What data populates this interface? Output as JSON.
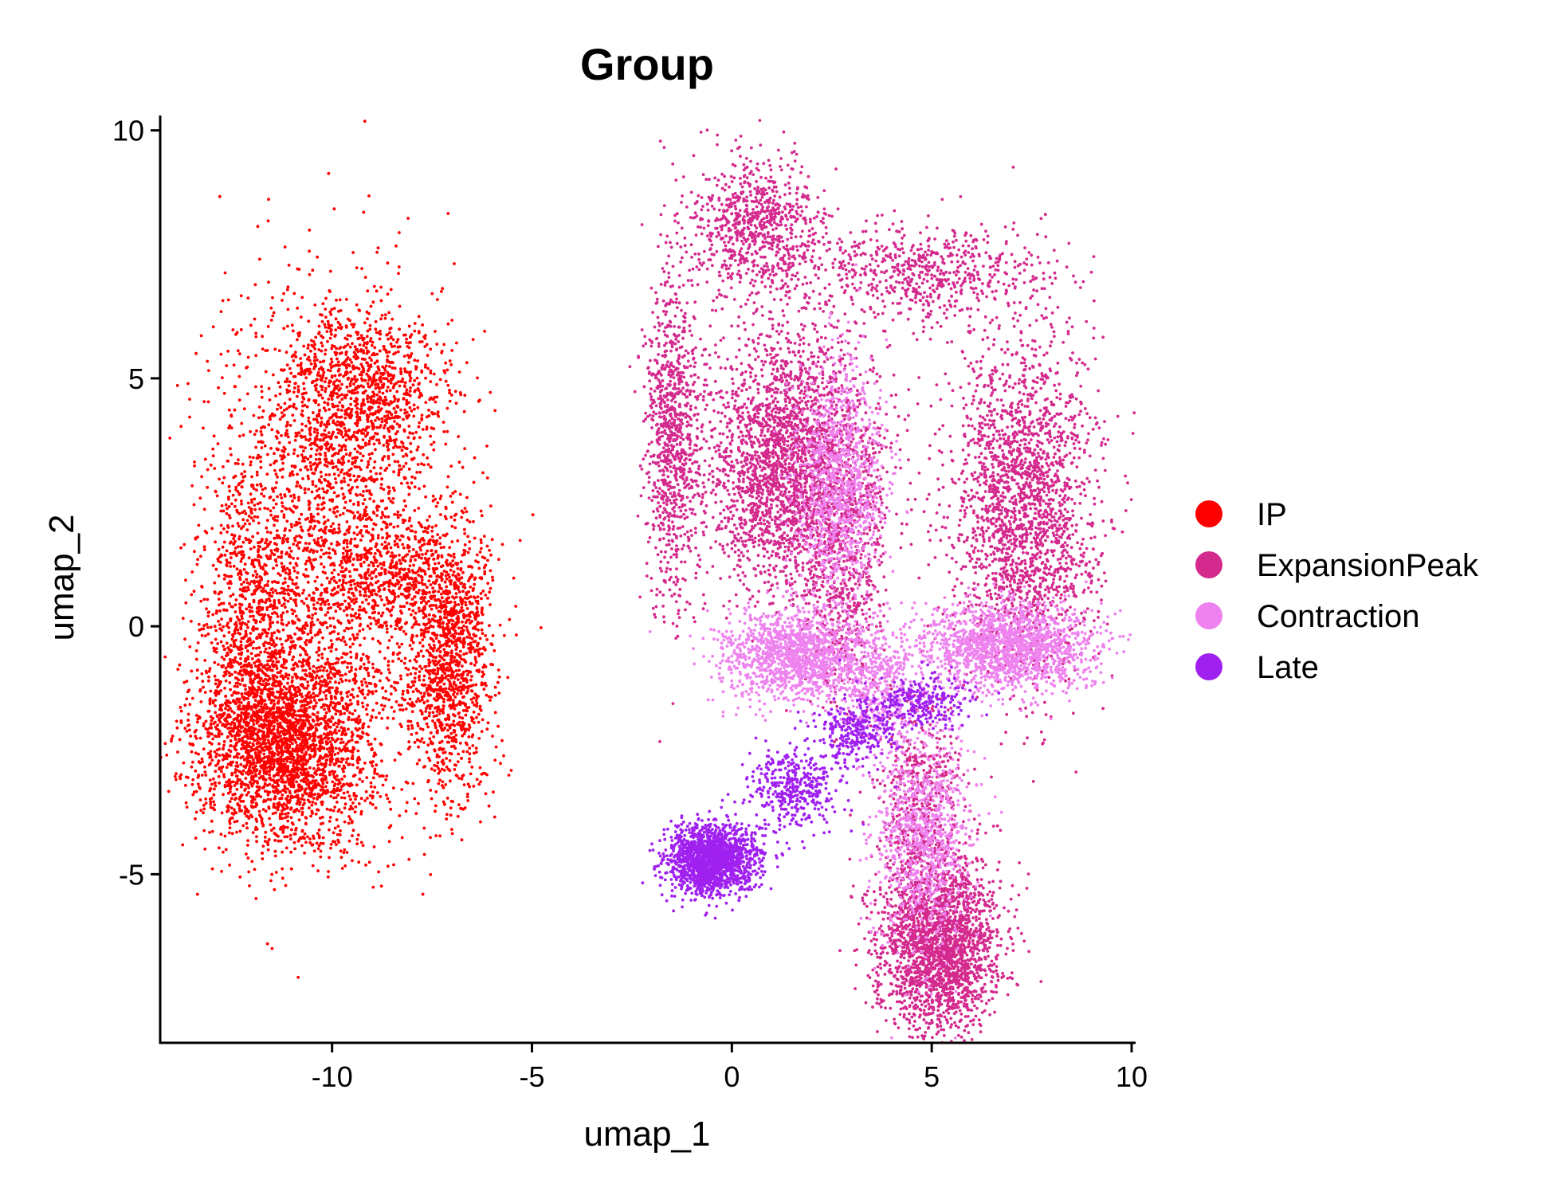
{
  "chart_data": {
    "type": "scatter",
    "title": "Group",
    "xlabel": "umap_1",
    "ylabel": "umap_2",
    "xlim": [
      -14.3,
      10.1
    ],
    "ylim": [
      -8.4,
      10.3
    ],
    "xticks": [
      -10,
      -5,
      0,
      5,
      10
    ],
    "yticks": [
      -5,
      0,
      5,
      10
    ],
    "xtick_labels": [
      "-10",
      "-5",
      "0",
      "5",
      "10"
    ],
    "ytick_labels": [
      "-5",
      "0",
      "5",
      "10"
    ],
    "grid": false,
    "legend_position": "right",
    "series": [
      {
        "name": "IP",
        "color": "#ff0000",
        "blobs": [
          {
            "cx": -11.2,
            "cy": -2.4,
            "sx": 1.1,
            "sy": 1.0,
            "n": 2600
          },
          {
            "cx": -10.3,
            "cy": 1.5,
            "sx": 1.4,
            "sy": 2.4,
            "n": 2000
          },
          {
            "cx": -9.3,
            "cy": 4.7,
            "sx": 1.1,
            "sy": 0.9,
            "n": 1100
          },
          {
            "cx": -7.1,
            "cy": -0.7,
            "sx": 0.55,
            "sy": 1.4,
            "n": 1300
          },
          {
            "cx": -8.5,
            "cy": 1.1,
            "sx": 0.9,
            "sy": 0.6,
            "n": 500
          },
          {
            "cx": -12.1,
            "cy": -0.2,
            "sx": 0.6,
            "sy": 1.6,
            "n": 700
          }
        ]
      },
      {
        "name": "ExpansionPeak",
        "color": "#d42a8e",
        "blobs": [
          {
            "cx": 1.5,
            "cy": 3.3,
            "sx": 1.1,
            "sy": 1.3,
            "n": 2800
          },
          {
            "cx": 7.3,
            "cy": 2.4,
            "sx": 0.9,
            "sy": 1.7,
            "n": 2200
          },
          {
            "cx": 5.2,
            "cy": -6.4,
            "sx": 0.75,
            "sy": 0.9,
            "n": 2400
          },
          {
            "cx": -1.5,
            "cy": 4.0,
            "sx": 0.35,
            "sy": 1.8,
            "n": 900
          },
          {
            "cx": 0.6,
            "cy": 8.1,
            "sx": 0.8,
            "sy": 0.7,
            "n": 800
          },
          {
            "cx": 4.6,
            "cy": 7.1,
            "sx": 1.7,
            "sy": 0.5,
            "n": 700
          },
          {
            "cx": 2.8,
            "cy": 1.0,
            "sx": 0.5,
            "sy": 1.3,
            "n": 500
          },
          {
            "cx": 4.7,
            "cy": -3.5,
            "sx": 0.5,
            "sy": 1.0,
            "n": 500
          }
        ]
      },
      {
        "name": "Contraction",
        "color": "#ee82ee",
        "blobs": [
          {
            "cx": 1.6,
            "cy": -0.6,
            "sx": 0.9,
            "sy": 0.45,
            "n": 1300
          },
          {
            "cx": 6.9,
            "cy": -0.4,
            "sx": 1.1,
            "sy": 0.45,
            "n": 1600
          },
          {
            "cx": 2.7,
            "cy": 2.8,
            "sx": 0.55,
            "sy": 1.2,
            "n": 1000
          },
          {
            "cx": 4.8,
            "cy": -4.2,
            "sx": 0.6,
            "sy": 1.1,
            "n": 900
          },
          {
            "cx": 3.6,
            "cy": -1.2,
            "sx": 0.5,
            "sy": 0.6,
            "n": 400
          }
        ]
      },
      {
        "name": "Late",
        "color": "#a020f0",
        "blobs": [
          {
            "cx": -0.5,
            "cy": -4.7,
            "sx": 0.55,
            "sy": 0.35,
            "n": 1700
          },
          {
            "cx": 1.6,
            "cy": -3.3,
            "sx": 0.55,
            "sy": 0.45,
            "n": 400
          },
          {
            "cx": 3.1,
            "cy": -2.1,
            "sx": 0.5,
            "sy": 0.35,
            "n": 300
          },
          {
            "cx": 4.8,
            "cy": -1.5,
            "sx": 0.6,
            "sy": 0.25,
            "n": 250
          }
        ]
      }
    ]
  }
}
